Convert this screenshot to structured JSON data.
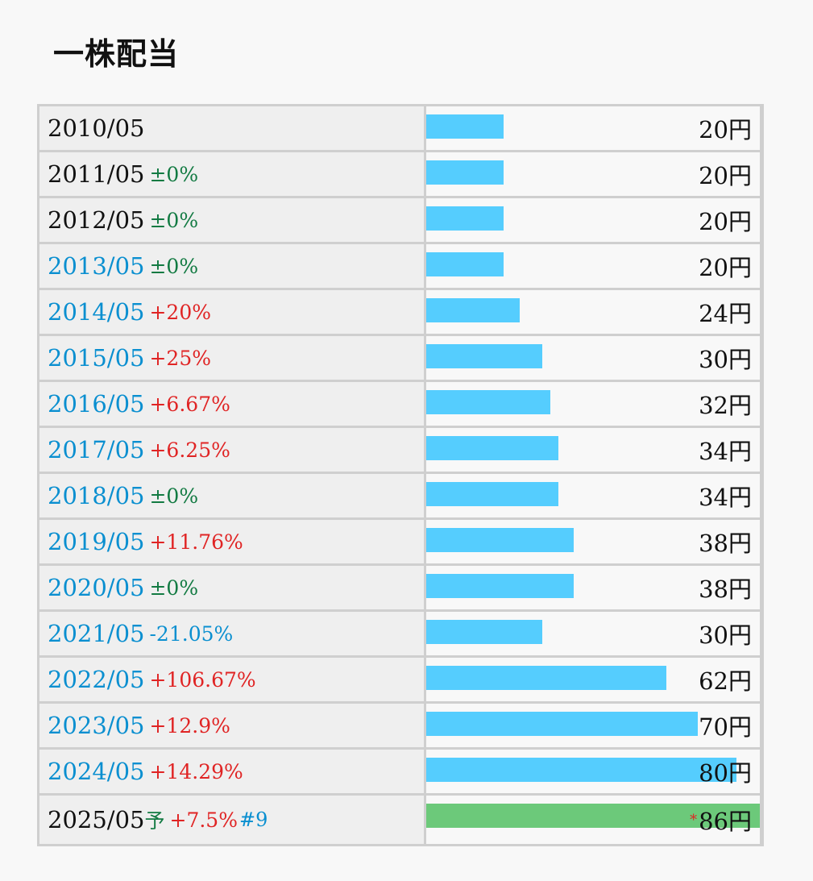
{
  "title": "一株配当",
  "unit": "円",
  "chart_data": {
    "type": "bar",
    "orientation": "horizontal",
    "categories": [
      "2010/05",
      "2011/05",
      "2012/05",
      "2013/05",
      "2014/05",
      "2015/05",
      "2016/05",
      "2017/05",
      "2018/05",
      "2019/05",
      "2020/05",
      "2021/05",
      "2022/05",
      "2023/05",
      "2024/05",
      "2025/05"
    ],
    "values": [
      20,
      20,
      20,
      20,
      24,
      30,
      32,
      34,
      34,
      38,
      38,
      30,
      62,
      70,
      80,
      86
    ],
    "xlim": [
      0,
      86
    ],
    "rows": [
      {
        "year": "2010/05",
        "change": "",
        "change_type": "none",
        "value": 20,
        "value_label": "20円",
        "link": false,
        "forecast": false
      },
      {
        "year": "2011/05",
        "change": "±0%",
        "change_type": "flat",
        "value": 20,
        "value_label": "20円",
        "link": false,
        "forecast": false
      },
      {
        "year": "2012/05",
        "change": "±0%",
        "change_type": "flat",
        "value": 20,
        "value_label": "20円",
        "link": false,
        "forecast": false
      },
      {
        "year": "2013/05",
        "change": "±0%",
        "change_type": "flat",
        "value": 20,
        "value_label": "20円",
        "link": true,
        "forecast": false
      },
      {
        "year": "2014/05",
        "change": "+20%",
        "change_type": "up",
        "value": 24,
        "value_label": "24円",
        "link": true,
        "forecast": false
      },
      {
        "year": "2015/05",
        "change": "+25%",
        "change_type": "up",
        "value": 30,
        "value_label": "30円",
        "link": true,
        "forecast": false
      },
      {
        "year": "2016/05",
        "change": "+6.67%",
        "change_type": "up",
        "value": 32,
        "value_label": "32円",
        "link": true,
        "forecast": false
      },
      {
        "year": "2017/05",
        "change": "+6.25%",
        "change_type": "up",
        "value": 34,
        "value_label": "34円",
        "link": true,
        "forecast": false
      },
      {
        "year": "2018/05",
        "change": "±0%",
        "change_type": "flat",
        "value": 34,
        "value_label": "34円",
        "link": true,
        "forecast": false
      },
      {
        "year": "2019/05",
        "change": "+11.76%",
        "change_type": "up",
        "value": 38,
        "value_label": "38円",
        "link": true,
        "forecast": false
      },
      {
        "year": "2020/05",
        "change": "±0%",
        "change_type": "flat",
        "value": 38,
        "value_label": "38円",
        "link": true,
        "forecast": false
      },
      {
        "year": "2021/05",
        "change": "-21.05%",
        "change_type": "down",
        "value": 30,
        "value_label": "30円",
        "link": true,
        "forecast": false
      },
      {
        "year": "2022/05",
        "change": "+106.67%",
        "change_type": "up",
        "value": 62,
        "value_label": "62円",
        "link": true,
        "forecast": false
      },
      {
        "year": "2023/05",
        "change": "+12.9%",
        "change_type": "up",
        "value": 70,
        "value_label": "70円",
        "link": true,
        "forecast": false
      },
      {
        "year": "2024/05",
        "change": "+14.29%",
        "change_type": "up",
        "value": 80,
        "value_label": "80円",
        "link": true,
        "forecast": false
      },
      {
        "year": "2025/05",
        "forecast_mark": "予",
        "change": "+7.5%",
        "change_type": "up",
        "note": "#9",
        "value": 86,
        "value_label": "86円",
        "value_prefix": "*",
        "link": false,
        "forecast": true
      }
    ]
  },
  "colors": {
    "bar": "#55cdfe",
    "forecast_bar": "#6cc97a",
    "up": "#e02424",
    "flat": "#127a42",
    "down": "#0a8fd0",
    "link": "#0a8fd0"
  }
}
